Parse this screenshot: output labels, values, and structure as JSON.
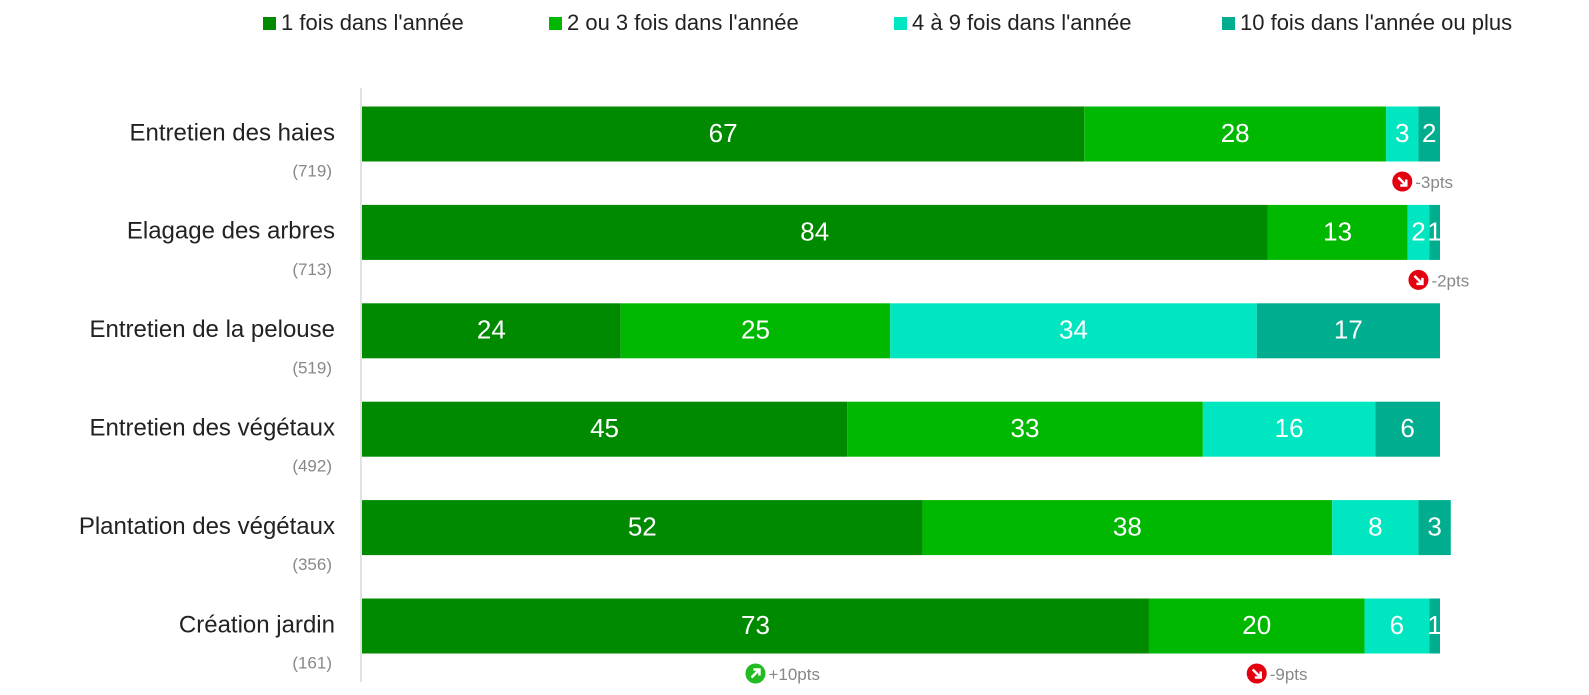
{
  "chart_data": {
    "type": "stacked-barh",
    "categories": [
      "Entretien des haies",
      "Elagage des arbres",
      "Entretien de la pelouse",
      "Entretien des végétaux",
      "Plantation des végétaux",
      "Création jardin"
    ],
    "category_notes": [
      "(719)",
      "(713)",
      "(519)",
      "(492)",
      "(356)",
      "(161)"
    ],
    "series": [
      {
        "name": "1 fois dans l'année",
        "color": "#008a00",
        "values": [
          67,
          84,
          24,
          45,
          52,
          73
        ]
      },
      {
        "name": "2 ou 3 fois dans l'année",
        "color": "#00b800",
        "values": [
          28,
          13,
          25,
          33,
          38,
          20
        ]
      },
      {
        "name": "4 à 9 fois dans l'année",
        "color": "#00e6c0",
        "values": [
          3,
          2,
          34,
          16,
          8,
          6
        ]
      },
      {
        "name": "10 fois dans l'année ou plus",
        "color": "#00ad8e",
        "values": [
          2,
          1,
          17,
          6,
          3,
          1
        ]
      }
    ],
    "xlim": [
      0,
      100
    ],
    "legend": "top",
    "annotations": [
      {
        "text": "-3pts",
        "category": 0,
        "series": 2,
        "icon": "down",
        "color": "#e3000f"
      },
      {
        "text": "-2pts",
        "category": 1,
        "series": 2,
        "icon": "down",
        "color": "#e3000f"
      },
      {
        "text": "+10pts",
        "category": 5,
        "series": 0,
        "icon": "up",
        "color": "#22bb22"
      },
      {
        "text": "-9pts",
        "category": 5,
        "series": 1,
        "icon": "down",
        "color": "#e3000f"
      }
    ]
  }
}
